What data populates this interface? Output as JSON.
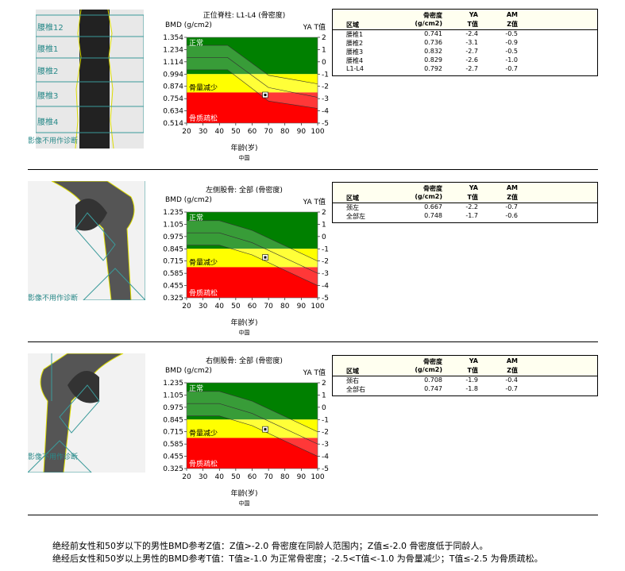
{
  "panels": [
    {
      "image_labels": [
        "腰椎12",
        "腰椎1",
        "腰椎2",
        "腰椎3",
        "腰椎4"
      ],
      "image_note": "影像不用作诊断",
      "table": {
        "headers": {
          "region": "区域",
          "bmd1": "骨密度",
          "bmd2": "(g/cm2)",
          "ya1": "YA",
          "ya2": "T值",
          "am1": "AM",
          "am2": "Z值"
        },
        "rows": [
          [
            "腰椎1",
            "0.741",
            "-2.4",
            "-0.5"
          ],
          [
            "腰椎2",
            "0.736",
            "-3.1",
            "-0.9"
          ],
          [
            "腰椎3",
            "0.832",
            "-2.7",
            "-0.5"
          ],
          [
            "腰椎4",
            "0.829",
            "-2.6",
            "-1.0"
          ],
          [
            "L1-L4",
            "0.792",
            "-2.7",
            "-0.7"
          ]
        ]
      }
    },
    {
      "image_note": "影像不用作诊断",
      "table": {
        "headers": {
          "region": "区域",
          "bmd1": "骨密度",
          "bmd2": "(g/cm2)",
          "ya1": "YA",
          "ya2": "T值",
          "am1": "AM",
          "am2": "Z值"
        },
        "rows": [
          [
            "颈左",
            "0.667",
            "-2.2",
            "-0.7"
          ],
          [
            "全部左",
            "0.748",
            "-1.7",
            "-0.6"
          ]
        ]
      }
    },
    {
      "image_note": "影像不用作诊断",
      "table": {
        "headers": {
          "region": "区域",
          "bmd1": "骨密度",
          "bmd2": "(g/cm2)",
          "ya1": "YA",
          "ya2": "T值",
          "am1": "AM",
          "am2": "Z值"
        },
        "rows": [
          [
            "颈右",
            "0.708",
            "-1.9",
            "-0.4"
          ],
          [
            "全部右",
            "0.747",
            "-1.8",
            "-0.7"
          ]
        ]
      }
    }
  ],
  "chart_data": [
    {
      "type": "area",
      "title": "正位脊柱: L1-L4 (骨密度)",
      "ylabel": "BMD (g/cm2)",
      "ylabel_right": "YA T值",
      "xlabel": "年龄(岁)",
      "note": "中国",
      "yticks": [
        "1.354",
        "1.234",
        "1.114",
        "0.994",
        "0.874",
        "0.754",
        "0.634",
        "0.514"
      ],
      "tticks": [
        "2",
        "1",
        "0",
        "-1",
        "-2",
        "-3",
        "-4",
        "-5"
      ],
      "xticks": [
        "20",
        "30",
        "40",
        "50",
        "60",
        "70",
        "80",
        "90",
        "100"
      ],
      "xlim": [
        20,
        100
      ],
      "tlim": [
        -5,
        2
      ],
      "zones": [
        {
          "label": "正常",
          "from": -1,
          "to": 2,
          "color": "#008000",
          "label_color": "#ffffff"
        },
        {
          "label": "骨量减少",
          "from": -2.5,
          "to": -1,
          "color": "#ffff00",
          "label_color": "#000000"
        },
        {
          "label": "骨质疏松",
          "from": -5,
          "to": -2.5,
          "color": "#ff0000",
          "label_color": "#ffffff"
        }
      ],
      "reference_curves": {
        "ages": [
          20,
          45,
          70,
          100
        ],
        "upper": [
          1.35,
          1.35,
          -1.1,
          -1.8
        ],
        "mean": [
          0.35,
          0.35,
          -2.1,
          -2.9
        ],
        "lower": [
          -0.65,
          -0.65,
          -3.2,
          -3.8
        ]
      },
      "point": {
        "age": 68,
        "bmd": 0.792,
        "t": -2.7
      }
    },
    {
      "type": "area",
      "title": "左侧股骨: 全部 (骨密度)",
      "ylabel": "BMD (g/cm2)",
      "ylabel_right": "YA T值",
      "xlabel": "年龄(岁)",
      "note": "中国",
      "yticks": [
        "1.235",
        "1.105",
        "0.975",
        "0.845",
        "0.715",
        "0.585",
        "0.455",
        "0.325"
      ],
      "tticks": [
        "2",
        "1",
        "0",
        "-1",
        "-2",
        "-3",
        "-4",
        "-5"
      ],
      "xticks": [
        "20",
        "30",
        "40",
        "50",
        "60",
        "70",
        "80",
        "90",
        "100"
      ],
      "xlim": [
        20,
        100
      ],
      "tlim": [
        -5,
        2
      ],
      "zones": [
        {
          "label": "正常",
          "from": -1,
          "to": 2,
          "color": "#008000",
          "label_color": "#ffffff"
        },
        {
          "label": "骨量减少",
          "from": -2.5,
          "to": -1,
          "color": "#ffff00",
          "label_color": "#000000"
        },
        {
          "label": "骨质疏松",
          "from": -5,
          "to": -2.5,
          "color": "#ff0000",
          "label_color": "#ffffff"
        }
      ],
      "reference_curves": {
        "ages": [
          20,
          40,
          60,
          100
        ],
        "upper": [
          1.3,
          1.3,
          0.5,
          -2
        ],
        "mean": [
          0.3,
          0.3,
          -0.5,
          -3
        ],
        "lower": [
          -0.7,
          -0.7,
          -1.5,
          -4
        ]
      },
      "point": {
        "age": 68,
        "bmd": 0.748,
        "t": -1.7
      }
    },
    {
      "type": "area",
      "title": "右侧股骨: 全部 (骨密度)",
      "ylabel": "BMD (g/cm2)",
      "ylabel_right": "YA T值",
      "xlabel": "年龄(岁)",
      "note": "中国",
      "yticks": [
        "1.235",
        "1.105",
        "0.975",
        "0.845",
        "0.715",
        "0.585",
        "0.455",
        "0.325"
      ],
      "tticks": [
        "2",
        "1",
        "0",
        "-1",
        "-2",
        "-3",
        "-4",
        "-5"
      ],
      "xticks": [
        "20",
        "30",
        "40",
        "50",
        "60",
        "70",
        "80",
        "90",
        "100"
      ],
      "xlim": [
        20,
        100
      ],
      "tlim": [
        -5,
        2
      ],
      "zones": [
        {
          "label": "正常",
          "from": -1,
          "to": 2,
          "color": "#008000",
          "label_color": "#ffffff"
        },
        {
          "label": "骨量减少",
          "from": -2.5,
          "to": -1,
          "color": "#ffff00",
          "label_color": "#000000"
        },
        {
          "label": "骨质疏松",
          "from": -5,
          "to": -2.5,
          "color": "#ff0000",
          "label_color": "#ffffff"
        }
      ],
      "reference_curves": {
        "ages": [
          20,
          40,
          60,
          100
        ],
        "upper": [
          1.3,
          1.3,
          0.5,
          -2
        ],
        "mean": [
          0.3,
          0.3,
          -0.5,
          -3
        ],
        "lower": [
          -0.7,
          -0.7,
          -1.5,
          -4
        ]
      },
      "point": {
        "age": 68,
        "bmd": 0.747,
        "t": -1.8
      }
    }
  ],
  "footer": {
    "line1": "绝经前女性和50岁以下的男性BMD参考Z值：Z值>-2.0 骨密度在同龄人范围内；Z值≤-2.0 骨密度低于同龄人。",
    "line2": "绝经后女性和50岁以上男性的BMD参考T值：T值≥-1.0  为正常骨密度；-2.5<T值<-1.0 为骨量减少；T值≤-2.5 为骨质疏松。"
  }
}
